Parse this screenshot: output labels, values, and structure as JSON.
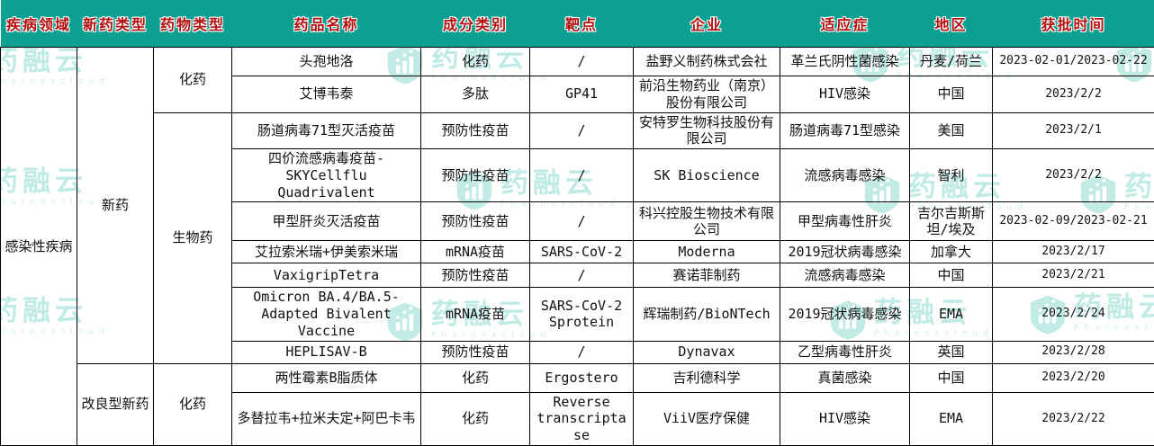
{
  "columns": [
    "疾病领域",
    "新药类型",
    "药物类型",
    "药品名称",
    "成分类别",
    "靶点",
    "企业",
    "适应症",
    "地区",
    "获批时间"
  ],
  "merged": {
    "disease_area": "感染性疾病",
    "new_drug": "新药",
    "improved_new_drug": "改良型新药",
    "chem_drug_top": "化药",
    "bio_drug": "生物药",
    "chem_drug_bottom": "化药"
  },
  "rows": [
    {
      "name": "头孢地洛",
      "component": "化药",
      "target": "/",
      "company": "盐野义制药株式会社",
      "indication": "革兰氏阴性菌感染",
      "region": "丹麦/荷兰",
      "date": "2023-02-01/2023-02-22"
    },
    {
      "name": "艾博韦泰",
      "component": "多肽",
      "target": "GP41",
      "company": "前沿生物药业（南京）股份有限公司",
      "indication": "HIV感染",
      "region": "中国",
      "date": "2023/2/2"
    },
    {
      "name": "肠道病毒71型灭活疫苗",
      "component": "预防性疫苗",
      "target": "/",
      "company": "安特罗生物科技股份有限公司",
      "indication": "肠道病毒71型感染",
      "region": "美国",
      "date": "2023/2/1"
    },
    {
      "name": "四价流感病毒疫苗-SKYCellflu Quadrivalent",
      "component": "预防性疫苗",
      "target": "/",
      "company": "SK Bioscience",
      "indication": "流感病毒感染",
      "region": "智利",
      "date": "2023/2/2"
    },
    {
      "name": "甲型肝炎灭活疫苗",
      "component": "预防性疫苗",
      "target": "/",
      "company": "科兴控股生物技术有限公司",
      "indication": "甲型病毒性肝炎",
      "region": "吉尔吉斯斯坦/埃及",
      "date": "2023-02-09/2023-02-21"
    },
    {
      "name": "艾拉索米瑞+伊美索米瑞",
      "component": "mRNA疫苗",
      "target": "SARS-CoV-2",
      "company": "Moderna",
      "indication": "2019冠状病毒感染",
      "region": "加拿大",
      "date": "2023/2/17"
    },
    {
      "name": "VaxigripTetra",
      "component": "预防性疫苗",
      "target": "/",
      "company": "赛诺菲制药",
      "indication": "流感病毒感染",
      "region": "中国",
      "date": "2023/2/21"
    },
    {
      "name": "Omicron BA.4/BA.5-Adapted Bivalent Vaccine",
      "component": "mRNA疫苗",
      "target": "SARS-CoV-2 Sprotein",
      "company": "辉瑞制药/BioNTech",
      "indication": "2019冠状病毒感染",
      "region": "EMA",
      "date": "2023/2/24"
    },
    {
      "name": "HEPLISAV-B",
      "component": "预防性疫苗",
      "target": "/",
      "company": "Dynavax",
      "indication": "乙型病毒性肝炎",
      "region": "英国",
      "date": "2023/2/28"
    },
    {
      "name": "两性霉素B脂质体",
      "component": "化药",
      "target": "Ergostero",
      "company": "吉利德科学",
      "indication": "真菌感染",
      "region": "中国",
      "date": "2023/2/20"
    },
    {
      "name": "多替拉韦+拉米夫定+阿巴卡韦",
      "component": "化药",
      "target": "Reverse transcriptase",
      "company": "ViiV医疗保健",
      "indication": "HIV感染",
      "region": "EMA",
      "date": "2023/2/22"
    }
  ],
  "watermark": {
    "brand": "药融云",
    "sub": "Pharnexcloud"
  },
  "colors": {
    "header_bg": "#0ba091",
    "header_text": "#b40f0f",
    "border": "#000000",
    "watermark": "#8edbd0"
  }
}
